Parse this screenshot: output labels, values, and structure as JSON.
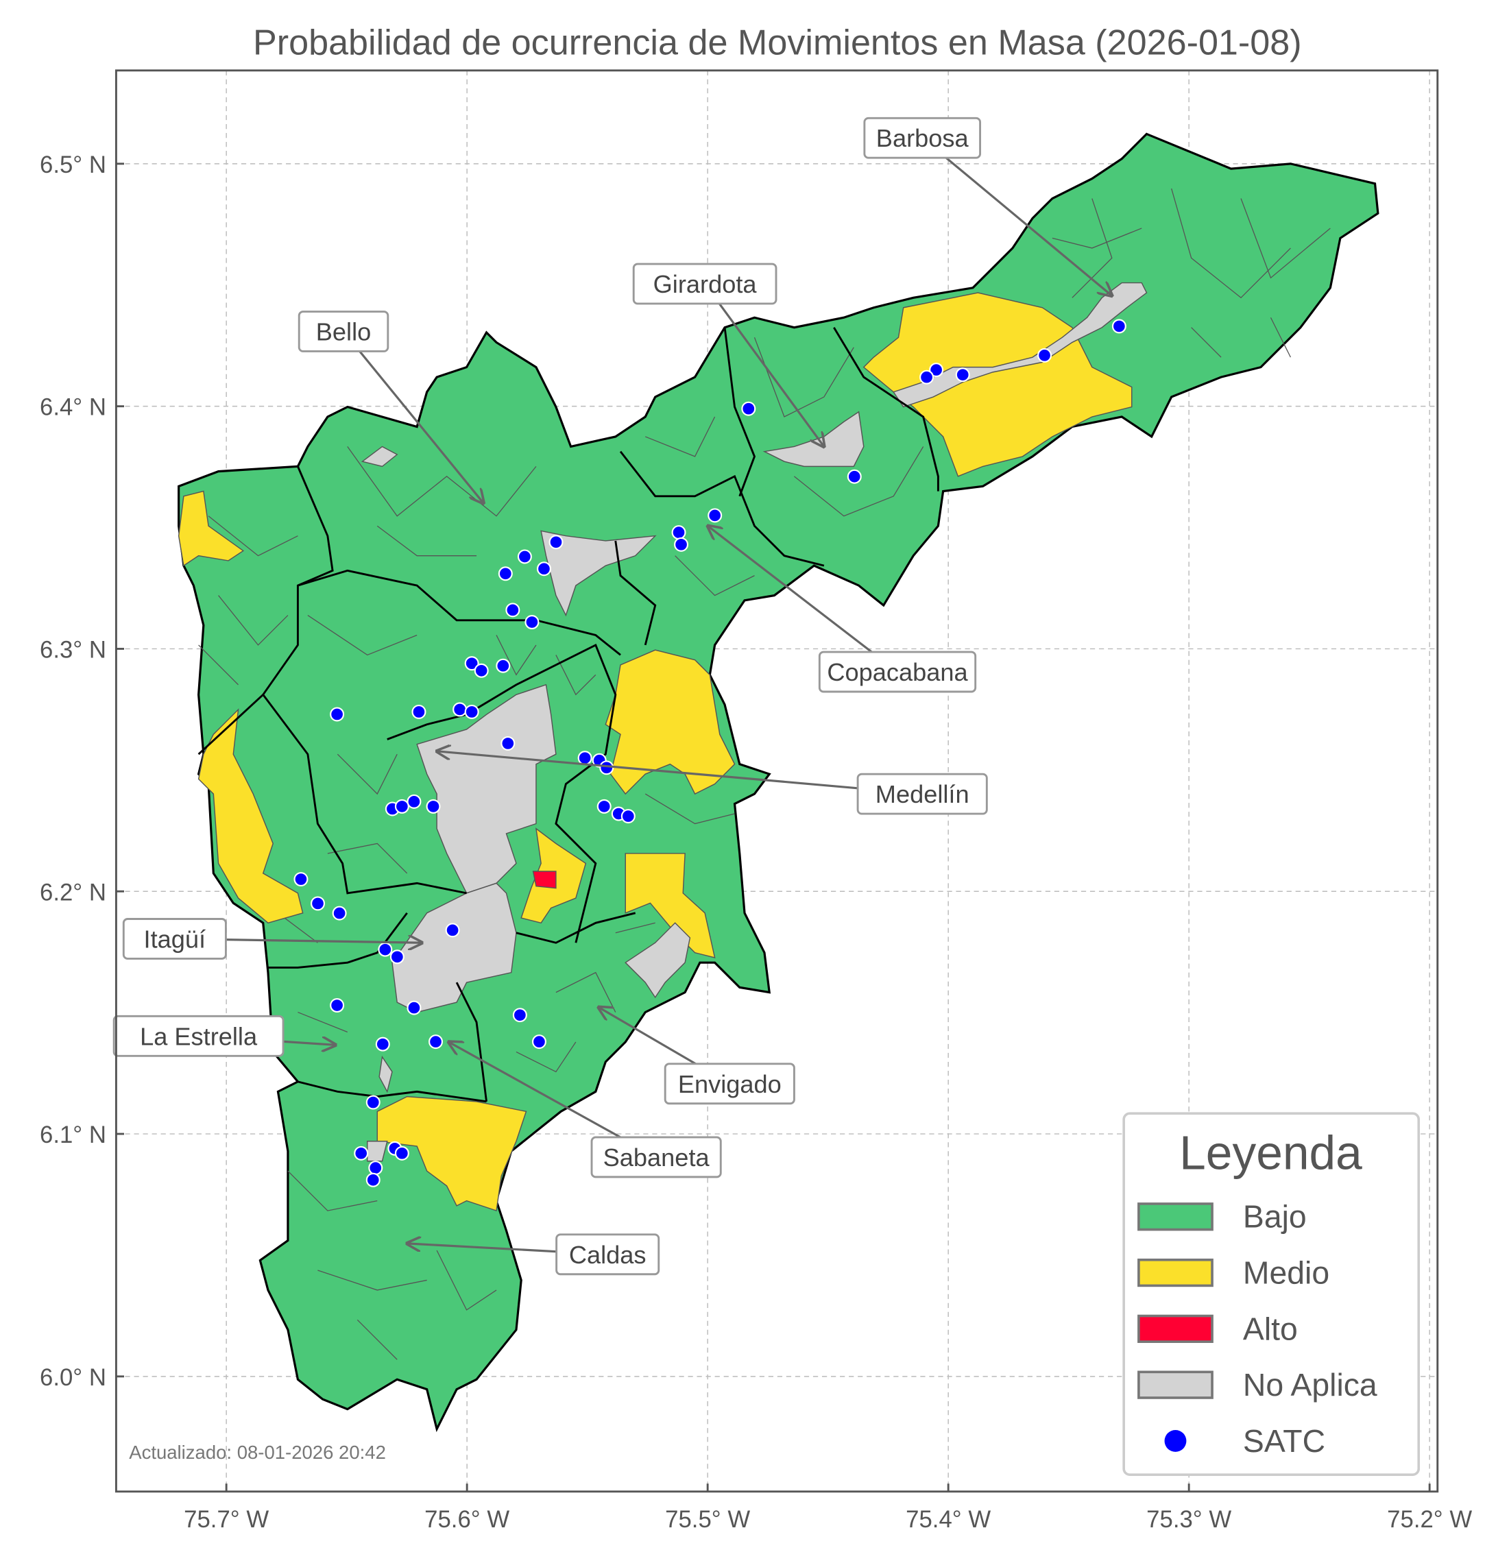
{
  "title": "Probabilidad de ocurrencia de Movimientos en Masa (2026-01-08)",
  "footer": "Actualizado: 08-01-2026 20:42",
  "axes": {
    "x_ticks": [
      "75.7° W",
      "75.6° W",
      "75.5° W",
      "75.4° W",
      "75.3° W",
      "75.2° W"
    ],
    "y_ticks": [
      "6.5° N",
      "6.4° N",
      "6.3° N",
      "6.2° N",
      "6.1° N",
      "6.0° N"
    ],
    "grid": true
  },
  "legend": {
    "title": "Leyenda",
    "placement": "lower-right",
    "items": [
      {
        "label": "Bajo",
        "color": "#4bc878"
      },
      {
        "label": "Medio",
        "color": "#fbe02a"
      },
      {
        "label": "Alto",
        "color": "#ff0033"
      },
      {
        "label": "No Aplica",
        "color": "#d3d3d3"
      },
      {
        "label": "SATC",
        "color": "#0000ff"
      }
    ]
  },
  "municipalities": [
    "Barbosa",
    "Girardota",
    "Bello",
    "Copacabana",
    "Medellín",
    "Itagüí",
    "La Estrella",
    "Envigado",
    "Sabaneta",
    "Caldas"
  ],
  "satc_stations": [
    [
      -75.329,
      6.433
    ],
    [
      -75.36,
      6.421
    ],
    [
      -75.394,
      6.413
    ],
    [
      -75.405,
      6.415
    ],
    [
      -75.409,
      6.412
    ],
    [
      -75.483,
      6.399
    ],
    [
      -75.439,
      6.371
    ],
    [
      -75.497,
      6.355
    ],
    [
      -75.512,
      6.348
    ],
    [
      -75.511,
      6.343
    ],
    [
      -75.563,
      6.344
    ],
    [
      -75.568,
      6.333
    ],
    [
      -75.576,
      6.338
    ],
    [
      -75.584,
      6.331
    ],
    [
      -75.581,
      6.316
    ],
    [
      -75.573,
      6.311
    ],
    [
      -75.598,
      6.294
    ],
    [
      -75.585,
      6.293
    ],
    [
      -75.594,
      6.291
    ],
    [
      -75.654,
      6.273
    ],
    [
      -75.62,
      6.274
    ],
    [
      -75.603,
      6.275
    ],
    [
      -75.598,
      6.274
    ],
    [
      -75.583,
      6.261
    ],
    [
      -75.551,
      6.255
    ],
    [
      -75.545,
      6.254
    ],
    [
      -75.542,
      6.251
    ],
    [
      -75.543,
      6.235
    ],
    [
      -75.537,
      6.232
    ],
    [
      -75.533,
      6.231
    ],
    [
      -75.622,
      6.237
    ],
    [
      -75.631,
      6.234
    ],
    [
      -75.627,
      6.235
    ],
    [
      -75.614,
      6.235
    ],
    [
      -75.669,
      6.205
    ],
    [
      -75.662,
      6.195
    ],
    [
      -75.653,
      6.191
    ],
    [
      -75.606,
      6.184
    ],
    [
      -75.634,
      6.176
    ],
    [
      -75.629,
      6.173
    ],
    [
      -75.654,
      6.153
    ],
    [
      -75.622,
      6.152
    ],
    [
      -75.578,
      6.149
    ],
    [
      -75.57,
      6.138
    ],
    [
      -75.635,
      6.137
    ],
    [
      -75.613,
      6.138
    ],
    [
      -75.639,
      6.113
    ],
    [
      -75.644,
      6.092
    ],
    [
      -75.63,
      6.094
    ],
    [
      -75.627,
      6.092
    ],
    [
      -75.638,
      6.086
    ],
    [
      -75.639,
      6.081
    ]
  ]
}
